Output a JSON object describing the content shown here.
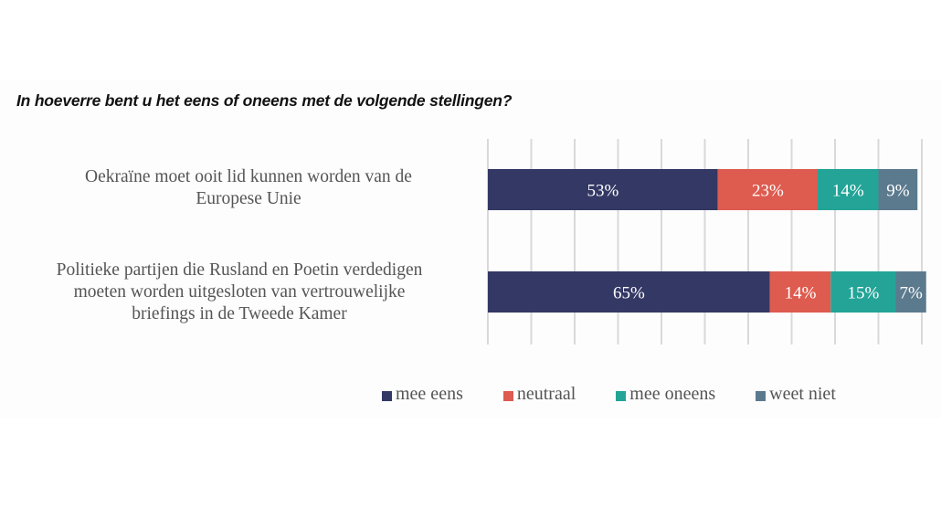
{
  "chart_data": {
    "type": "bar",
    "orientation": "horizontal",
    "stacked": true,
    "title": "In hoeverre bent u het eens of oneens met de volgende stellingen?",
    "xlabel": "",
    "ylabel": "",
    "xlim": [
      0,
      100
    ],
    "grid": true,
    "legend_position": "bottom",
    "categories": [
      "Oekraïne moet ooit lid kunnen worden van de Europese Unie",
      "Politieke partijen die Rusland en Poetin verdedigen moeten worden uitgesloten van vertrouwelijke briefings in de Tweede Kamer"
    ],
    "series": [
      {
        "name": "mee eens",
        "color": "#343864",
        "values": [
          53,
          65
        ],
        "labels": [
          "53%",
          "65%"
        ]
      },
      {
        "name": "neutraal",
        "color": "#de5b4f",
        "values": [
          23,
          14
        ],
        "labels": [
          "23%",
          "14%"
        ]
      },
      {
        "name": "mee oneens",
        "color": "#23a497",
        "values": [
          14,
          15
        ],
        "labels": [
          "14%",
          "15%"
        ]
      },
      {
        "name": "weet niet",
        "color": "#5c7a8e",
        "values": [
          9,
          7
        ],
        "labels": [
          "9%",
          "7%"
        ]
      }
    ]
  },
  "category_lines": [
    [
      "Oekraïne moet ooit lid kunnen worden van de",
      "Europese Unie"
    ],
    [
      "Politieke partijen die Rusland en Poetin verdedigen",
      "moeten worden uitgesloten van vertrouwelijke",
      "briefings in de Tweede Kamer"
    ]
  ]
}
